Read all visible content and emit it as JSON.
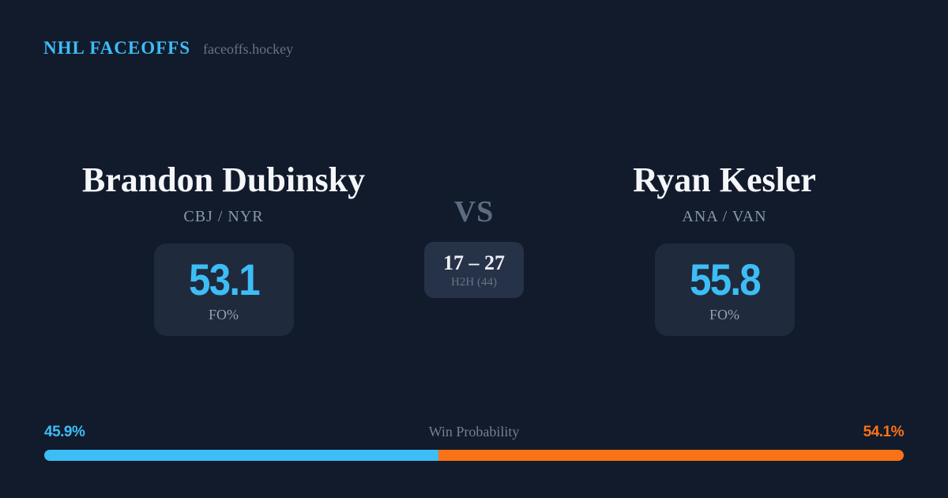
{
  "header": {
    "brand": "NHL FACEOFFS",
    "site": "faceoffs.hockey"
  },
  "left_player": {
    "name": "Brandon Dubinsky",
    "teams": "CBJ / NYR",
    "fo_value": "53.1",
    "fo_label": "FO%"
  },
  "matchup": {
    "vs": "VS",
    "h2h_score": "17 – 27",
    "h2h_label": "H2H (44)"
  },
  "right_player": {
    "name": "Ryan Kesler",
    "teams": "ANA / VAN",
    "fo_value": "55.8",
    "fo_label": "FO%"
  },
  "win_probability": {
    "title": "Win Probability",
    "left_pct_label": "45.9%",
    "right_pct_label": "54.1%",
    "left_value": 45.9,
    "right_value": 54.1,
    "left_color": "#3dbdf6",
    "right_color": "#f97316"
  },
  "colors": {
    "background": "#121b2c",
    "card": "#1f2a3c",
    "h2h_card": "#263247",
    "accent_blue": "#3dbdf6",
    "accent_orange": "#f97316"
  },
  "chart_data": {
    "type": "bar",
    "title": "Win Probability",
    "categories": [
      "Brandon Dubinsky",
      "Ryan Kesler"
    ],
    "values": [
      45.9,
      54.1
    ],
    "unit": "%",
    "xlim": [
      0,
      100
    ],
    "notes": "single stacked horizontal bar, blue vs orange segments"
  }
}
